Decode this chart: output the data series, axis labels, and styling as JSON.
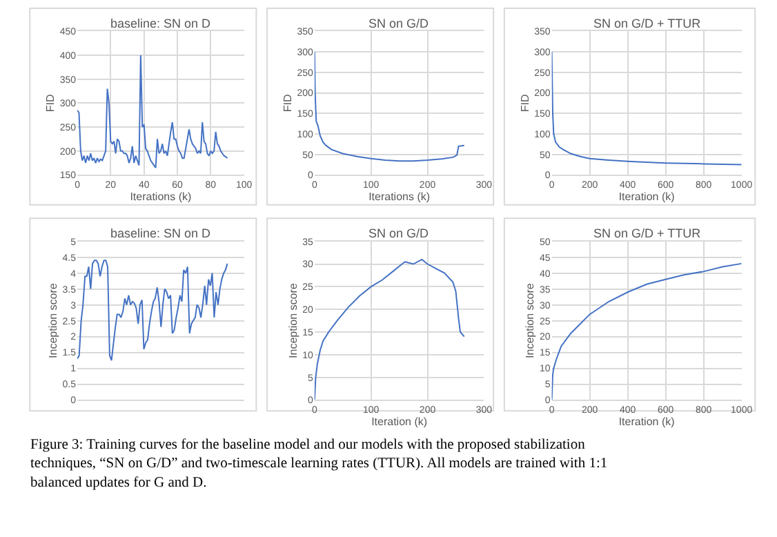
{
  "chart_data": [
    {
      "type": "line",
      "title": "baseline: SN on D",
      "xlabel": "Iterations (k)",
      "ylabel": "FID",
      "xlim": [
        0,
        100
      ],
      "xticks": [
        0,
        20,
        40,
        60,
        80,
        100
      ],
      "ylim": [
        150,
        450
      ],
      "yticks": [
        150,
        200,
        250,
        300,
        350,
        400,
        450
      ],
      "grid": true,
      "line_style": "solid",
      "series": [
        {
          "color": "#4472c4",
          "x": [
            0,
            1,
            2,
            3,
            4,
            5,
            6,
            7,
            8,
            9,
            10,
            11,
            12,
            13,
            14,
            15,
            16,
            17,
            18,
            19,
            20,
            21,
            22,
            23,
            24,
            25,
            26,
            27,
            28,
            29,
            30,
            31,
            32,
            33,
            34,
            35,
            36,
            37,
            38,
            39,
            40,
            41,
            42,
            43,
            44,
            45,
            46,
            47,
            48,
            49,
            50,
            51,
            52,
            53,
            54,
            55,
            56,
            57,
            58,
            59,
            60,
            61,
            62,
            63,
            64,
            65,
            66,
            67,
            68,
            69,
            70,
            71,
            72,
            73,
            74,
            75,
            76,
            77,
            78,
            79,
            80,
            81,
            82,
            83,
            84,
            85,
            86,
            87,
            88,
            89,
            90
          ],
          "values": [
            285,
            280,
            200,
            180,
            190,
            175,
            190,
            180,
            195,
            180,
            185,
            175,
            185,
            178,
            183,
            180,
            190,
            200,
            330,
            300,
            220,
            215,
            220,
            195,
            225,
            220,
            200,
            200,
            195,
            195,
            190,
            175,
            185,
            210,
            175,
            190,
            180,
            170,
            400,
            250,
            255,
            205,
            200,
            190,
            180,
            175,
            170,
            165,
            225,
            195,
            200,
            215,
            195,
            200,
            190,
            215,
            240,
            260,
            225,
            225,
            210,
            200,
            195,
            185,
            185,
            205,
            225,
            245,
            225,
            215,
            210,
            205,
            195,
            200,
            195,
            260,
            220,
            215,
            195,
            190,
            200,
            195,
            200,
            240,
            215,
            210,
            200,
            195,
            190,
            188,
            185
          ]
        }
      ]
    },
    {
      "type": "line",
      "title": "SN on G/D",
      "xlabel": "Iterations (k)",
      "ylabel": "FID",
      "xlim": [
        0,
        300
      ],
      "xticks": [
        0,
        100,
        200,
        300
      ],
      "ylim": [
        0,
        350
      ],
      "yticks": [
        0,
        50,
        100,
        150,
        200,
        250,
        300,
        350
      ],
      "grid": true,
      "line_style": "solid",
      "series": [
        {
          "color": "#4472c4",
          "x": [
            0,
            1,
            3,
            6,
            10,
            15,
            20,
            30,
            50,
            75,
            100,
            125,
            150,
            175,
            200,
            225,
            245,
            252,
            255,
            265
          ],
          "values": [
            300,
            200,
            130,
            120,
            95,
            80,
            72,
            62,
            52,
            45,
            40,
            36,
            34,
            34,
            36,
            39,
            43,
            48,
            70,
            72
          ]
        }
      ]
    },
    {
      "type": "line",
      "title": "SN on G/D + TTUR",
      "xlabel": "Iteration (k)",
      "ylabel": "FID",
      "xlim": [
        0,
        1000
      ],
      "xticks": [
        0,
        200,
        400,
        600,
        800,
        1000
      ],
      "ylim": [
        0,
        350
      ],
      "yticks": [
        0,
        50,
        100,
        150,
        200,
        250,
        300,
        350
      ],
      "grid": true,
      "line_style": "solid",
      "series": [
        {
          "color": "#4472c4",
          "x": [
            0,
            5,
            10,
            20,
            40,
            60,
            100,
            150,
            200,
            300,
            400,
            500,
            600,
            700,
            800,
            900,
            1000
          ],
          "values": [
            300,
            150,
            100,
            80,
            68,
            62,
            52,
            45,
            40,
            36,
            33,
            31,
            29,
            28,
            27,
            26,
            25
          ]
        }
      ]
    },
    {
      "type": "line",
      "title": "baseline: SN on D",
      "ylabel": "Inception score",
      "xlim": [
        0,
        100
      ],
      "ylim": [
        0,
        5
      ],
      "yticks": [
        0,
        0.5,
        1,
        1.5,
        2,
        2.5,
        3,
        3.5,
        4,
        4.5,
        5
      ],
      "tick_labels": "y",
      "grid": true,
      "line_style": "solid",
      "series": [
        {
          "color": "#4472c4",
          "x": [
            0,
            1.1,
            2.3,
            3.4,
            4.6,
            5.7,
            6.8,
            8,
            9.1,
            10.3,
            11.4,
            12.5,
            13.7,
            14.8,
            16,
            17.1,
            18.2,
            19.4,
            20.5,
            21.7,
            22.8,
            23.9,
            25.1,
            26.2,
            27.4,
            28.5,
            29.6,
            30.8,
            31.9,
            33.1,
            34.2,
            35.3,
            36.5,
            37.6,
            38.8,
            39.9,
            41,
            42.2,
            43.3,
            44.5,
            45.6,
            46.7,
            47.9,
            49,
            50.2,
            51.3,
            52.4,
            53.6,
            54.7,
            55.9,
            57,
            58.1,
            59.3,
            60.4,
            61.6,
            62.7,
            63.8,
            65,
            66.1,
            67.3,
            68.4,
            69.5,
            70.7,
            71.8,
            73,
            74.1,
            75.2,
            76.4,
            77.5,
            78.7,
            79.8,
            80.9,
            82.1,
            83.2,
            84.4,
            85.5,
            86.6,
            87.8,
            88.9,
            90
          ],
          "values": [
            1.3,
            1.4,
            2.5,
            3,
            3.9,
            3.9,
            4.2,
            3.5,
            4.3,
            4.4,
            4.4,
            4.3,
            3.9,
            4.2,
            4.4,
            4.4,
            4.2,
            1.4,
            1.25,
            1.8,
            2.3,
            2.7,
            2.7,
            2.6,
            2.8,
            3.2,
            3,
            3.3,
            3,
            3.1,
            3.05,
            2.9,
            2.4,
            3,
            3.15,
            1.6,
            1.8,
            1.9,
            2.4,
            2.8,
            3.1,
            3.2,
            3.55,
            3.1,
            2.3,
            3,
            3.5,
            3.4,
            3.2,
            3.3,
            2.1,
            2.2,
            2.6,
            2.9,
            3.3,
            3.1,
            4.1,
            4,
            4.2,
            2.1,
            2.4,
            2.5,
            2.6,
            3,
            2.9,
            2.6,
            3,
            3.6,
            3,
            3.8,
            3.6,
            4,
            2.6,
            3.4,
            3,
            3.5,
            3.8,
            4,
            4.1,
            4.3
          ]
        }
      ]
    },
    {
      "type": "line",
      "title": "SN on G/D",
      "xlabel": "Iteration (k)",
      "ylabel": "Inception score",
      "xlim": [
        0,
        300
      ],
      "xticks": [
        0,
        100,
        200,
        300
      ],
      "ylim": [
        0,
        35
      ],
      "yticks": [
        0,
        5,
        10,
        15,
        20,
        25,
        30,
        35
      ],
      "grid": true,
      "line_style": "solid",
      "series": [
        {
          "color": "#4472c4",
          "x": [
            0,
            2,
            5,
            10,
            15,
            25,
            40,
            60,
            80,
            100,
            120,
            140,
            150,
            160,
            175,
            190,
            200,
            215,
            230,
            245,
            250,
            255,
            258,
            265
          ],
          "values": [
            0,
            5,
            8,
            11,
            13,
            15,
            17.5,
            20.5,
            23,
            25,
            26.5,
            28.5,
            29.5,
            30.5,
            30,
            31,
            30,
            29,
            28,
            26,
            24,
            18,
            15,
            14
          ]
        }
      ]
    },
    {
      "type": "line",
      "title": "SN on G/D + TTUR",
      "xlabel": "Iteration (k)",
      "ylabel": "Inception score",
      "xlim": [
        0,
        1000
      ],
      "xticks": [
        0,
        200,
        400,
        600,
        800,
        1000
      ],
      "ylim": [
        0,
        50
      ],
      "yticks": [
        0,
        5,
        10,
        15,
        20,
        25,
        30,
        35,
        40,
        45,
        50
      ],
      "grid": true,
      "line_style": "solid",
      "series": [
        {
          "color": "#4472c4",
          "x": [
            0,
            5,
            10,
            25,
            50,
            100,
            150,
            200,
            300,
            400,
            500,
            600,
            700,
            800,
            900,
            1000
          ],
          "values": [
            0,
            8,
            10,
            13,
            17,
            21,
            24,
            27,
            31,
            34,
            36.5,
            38,
            39.5,
            40.5,
            42,
            43
          ]
        }
      ],
      "annotations": [
        "Figure 3: Training curves for the baseline model and our models with the proposed stabilization techniques, “SN on G/D” and two-timescale learning rates (TTUR). All models are trained with 1:1 balanced updates for G and D."
      ]
    }
  ]
}
